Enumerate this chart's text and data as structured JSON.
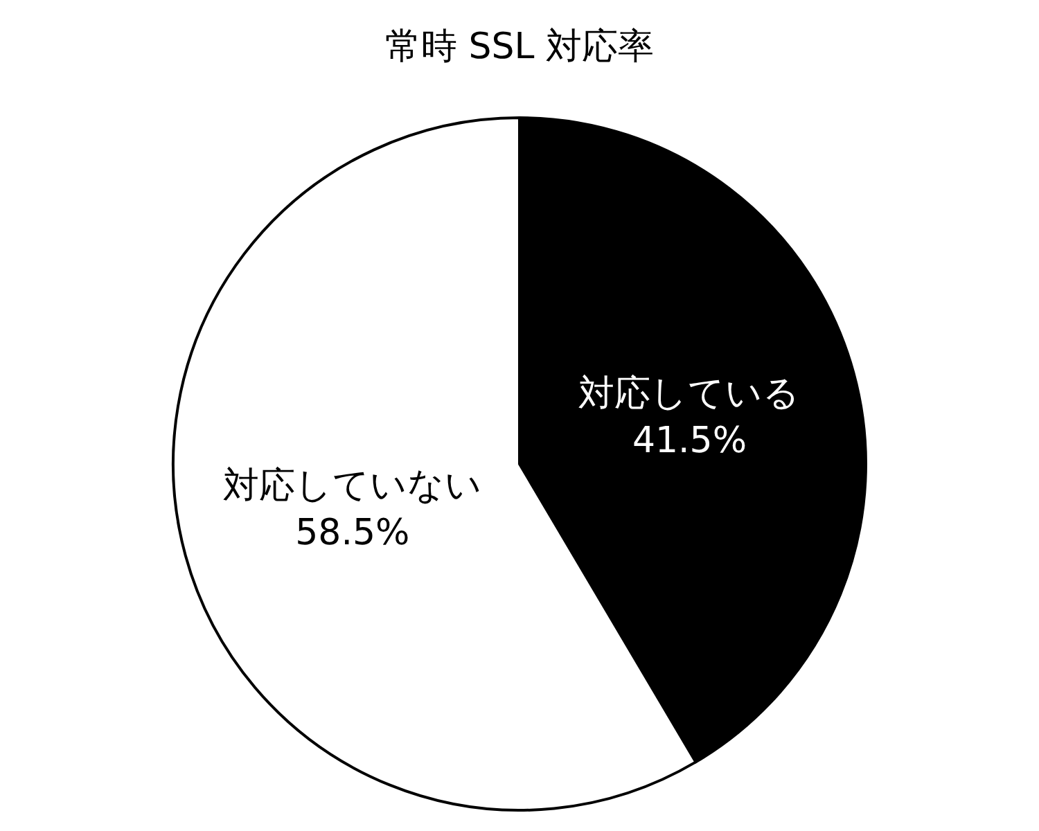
{
  "chart_data": {
    "type": "pie",
    "title": "常時 SSL 対応率",
    "categories": [
      "対応している",
      "対応していない"
    ],
    "values": [
      41.5,
      58.5
    ],
    "colors": [
      "#000000",
      "#ffffff"
    ],
    "value_labels": [
      "41.5%",
      "58.5%"
    ],
    "legend": false
  }
}
